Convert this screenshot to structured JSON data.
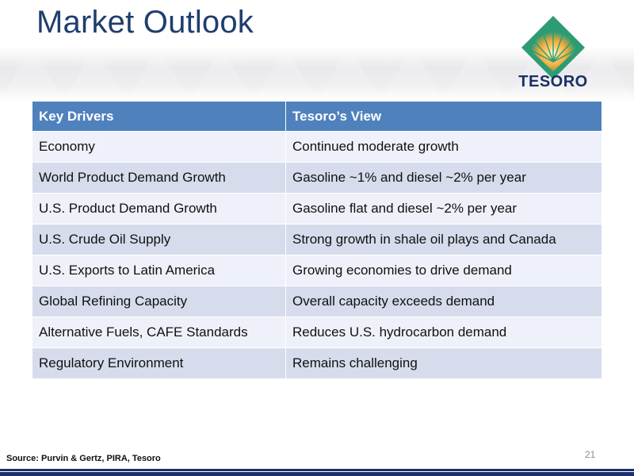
{
  "slide": {
    "title": "Market Outlook",
    "logo_text": "TESORO",
    "page_number": "21",
    "source": "Source: Purvin & Gertz, PIRA, Tesoro"
  },
  "table": {
    "headers": [
      "Key Drivers",
      "Tesoro’s View"
    ],
    "rows": [
      [
        "Economy",
        "Continued moderate growth"
      ],
      [
        "World Product Demand Growth",
        "Gasoline ~1% and diesel ~2% per year"
      ],
      [
        "U.S. Product Demand Growth",
        "Gasoline flat and diesel ~2% per year"
      ],
      [
        "U.S. Crude Oil Supply",
        "Strong growth in shale oil plays and Canada"
      ],
      [
        "U.S. Exports to Latin America",
        "Growing economies to drive demand"
      ],
      [
        "Global Refining Capacity",
        "Overall capacity exceeds demand"
      ],
      [
        "Alternative Fuels, CAFE Standards",
        "Reduces U.S. hydrocarbon demand"
      ],
      [
        "Regulatory Environment",
        "Remains challenging"
      ]
    ]
  },
  "colors": {
    "title": "#1f3e6e",
    "header_bg": "#4f81bd",
    "row_light": "#eef1f9",
    "row_dark": "#d6dcec",
    "brand_navy": "#1c2f6c",
    "logo_green": "#2e9c73",
    "logo_gold": "#f2a93b"
  }
}
